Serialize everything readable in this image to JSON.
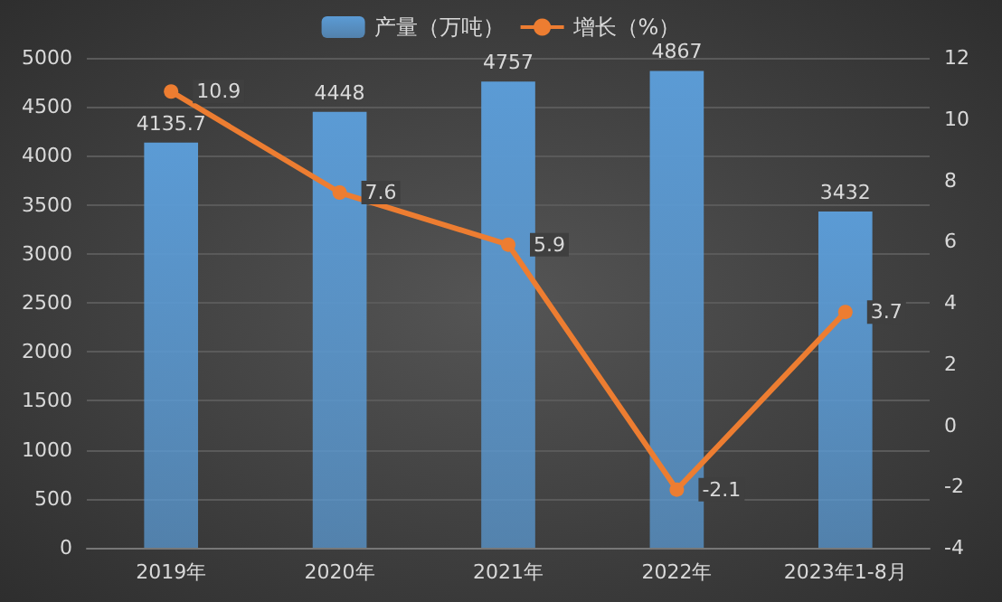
{
  "chart_data": {
    "type": "bar",
    "categories": [
      "2019年",
      "2020年",
      "2021年",
      "2022年",
      "2023年1-8月"
    ],
    "series": [
      {
        "name": "产量（万吨）",
        "color": "#5b9bd5",
        "values": [
          4135.7,
          4448,
          4757,
          4867,
          3432
        ]
      },
      {
        "name": "增长（%）",
        "type": "line",
        "axis": "y2",
        "color": "#ed7d31",
        "values": [
          10.9,
          7.6,
          5.9,
          -2.1,
          3.7
        ]
      }
    ],
    "ylim": [
      0,
      5000
    ],
    "yticks": [
      0,
      500,
      1000,
      1500,
      2000,
      2500,
      3000,
      3500,
      4000,
      4500,
      5000
    ],
    "y2lim": [
      -4,
      12
    ],
    "y2ticks": [
      -4,
      -2,
      0,
      2,
      4,
      6,
      8,
      10,
      12
    ],
    "grid": "y",
    "legend": "top",
    "marker": "circle",
    "data_labels": true
  }
}
